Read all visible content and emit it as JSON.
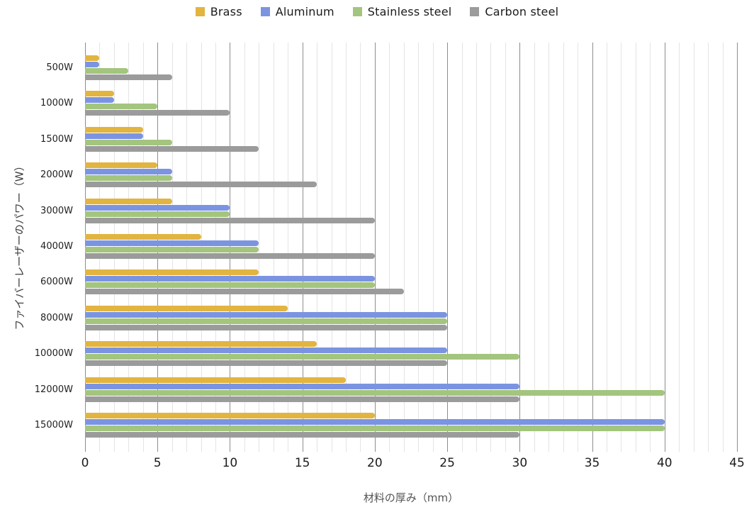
{
  "chart_data": {
    "type": "bar",
    "orientation": "horizontal",
    "title": "",
    "xlabel": "材料の厚み（mm）",
    "ylabel": "ファイバーレーザーのパワー（W）",
    "categories": [
      "500W",
      "1000W",
      "1500W",
      "2000W",
      "3000W",
      "4000W",
      "6000W",
      "8000W",
      "10000W",
      "12000W",
      "15000W"
    ],
    "series": [
      {
        "name": "Brass",
        "color": "#E2B440",
        "values": [
          1,
          2,
          4,
          5,
          6,
          8,
          12,
          14,
          16,
          18,
          20
        ]
      },
      {
        "name": "Aluminum",
        "color": "#7B94E2",
        "values": [
          1,
          2,
          4,
          6,
          10,
          12,
          20,
          25,
          25,
          30,
          40
        ]
      },
      {
        "name": "Stainless steel",
        "color": "#A3C57E",
        "values": [
          3,
          5,
          6,
          6,
          10,
          12,
          20,
          25,
          30,
          40,
          40
        ]
      },
      {
        "name": "Carbon steel",
        "color": "#9B9B9B",
        "values": [
          6,
          10,
          12,
          16,
          20,
          20,
          22,
          25,
          25,
          30,
          30
        ]
      }
    ],
    "xlim": [
      0,
      45
    ],
    "x_major_ticks": [
      0,
      5,
      10,
      15,
      20,
      25,
      30,
      35,
      40,
      45
    ],
    "x_minor_step": 1,
    "grid": "vertical, minor every 1 unit, major every 5 units",
    "legend_position": "top-center",
    "background": "#ffffff"
  }
}
